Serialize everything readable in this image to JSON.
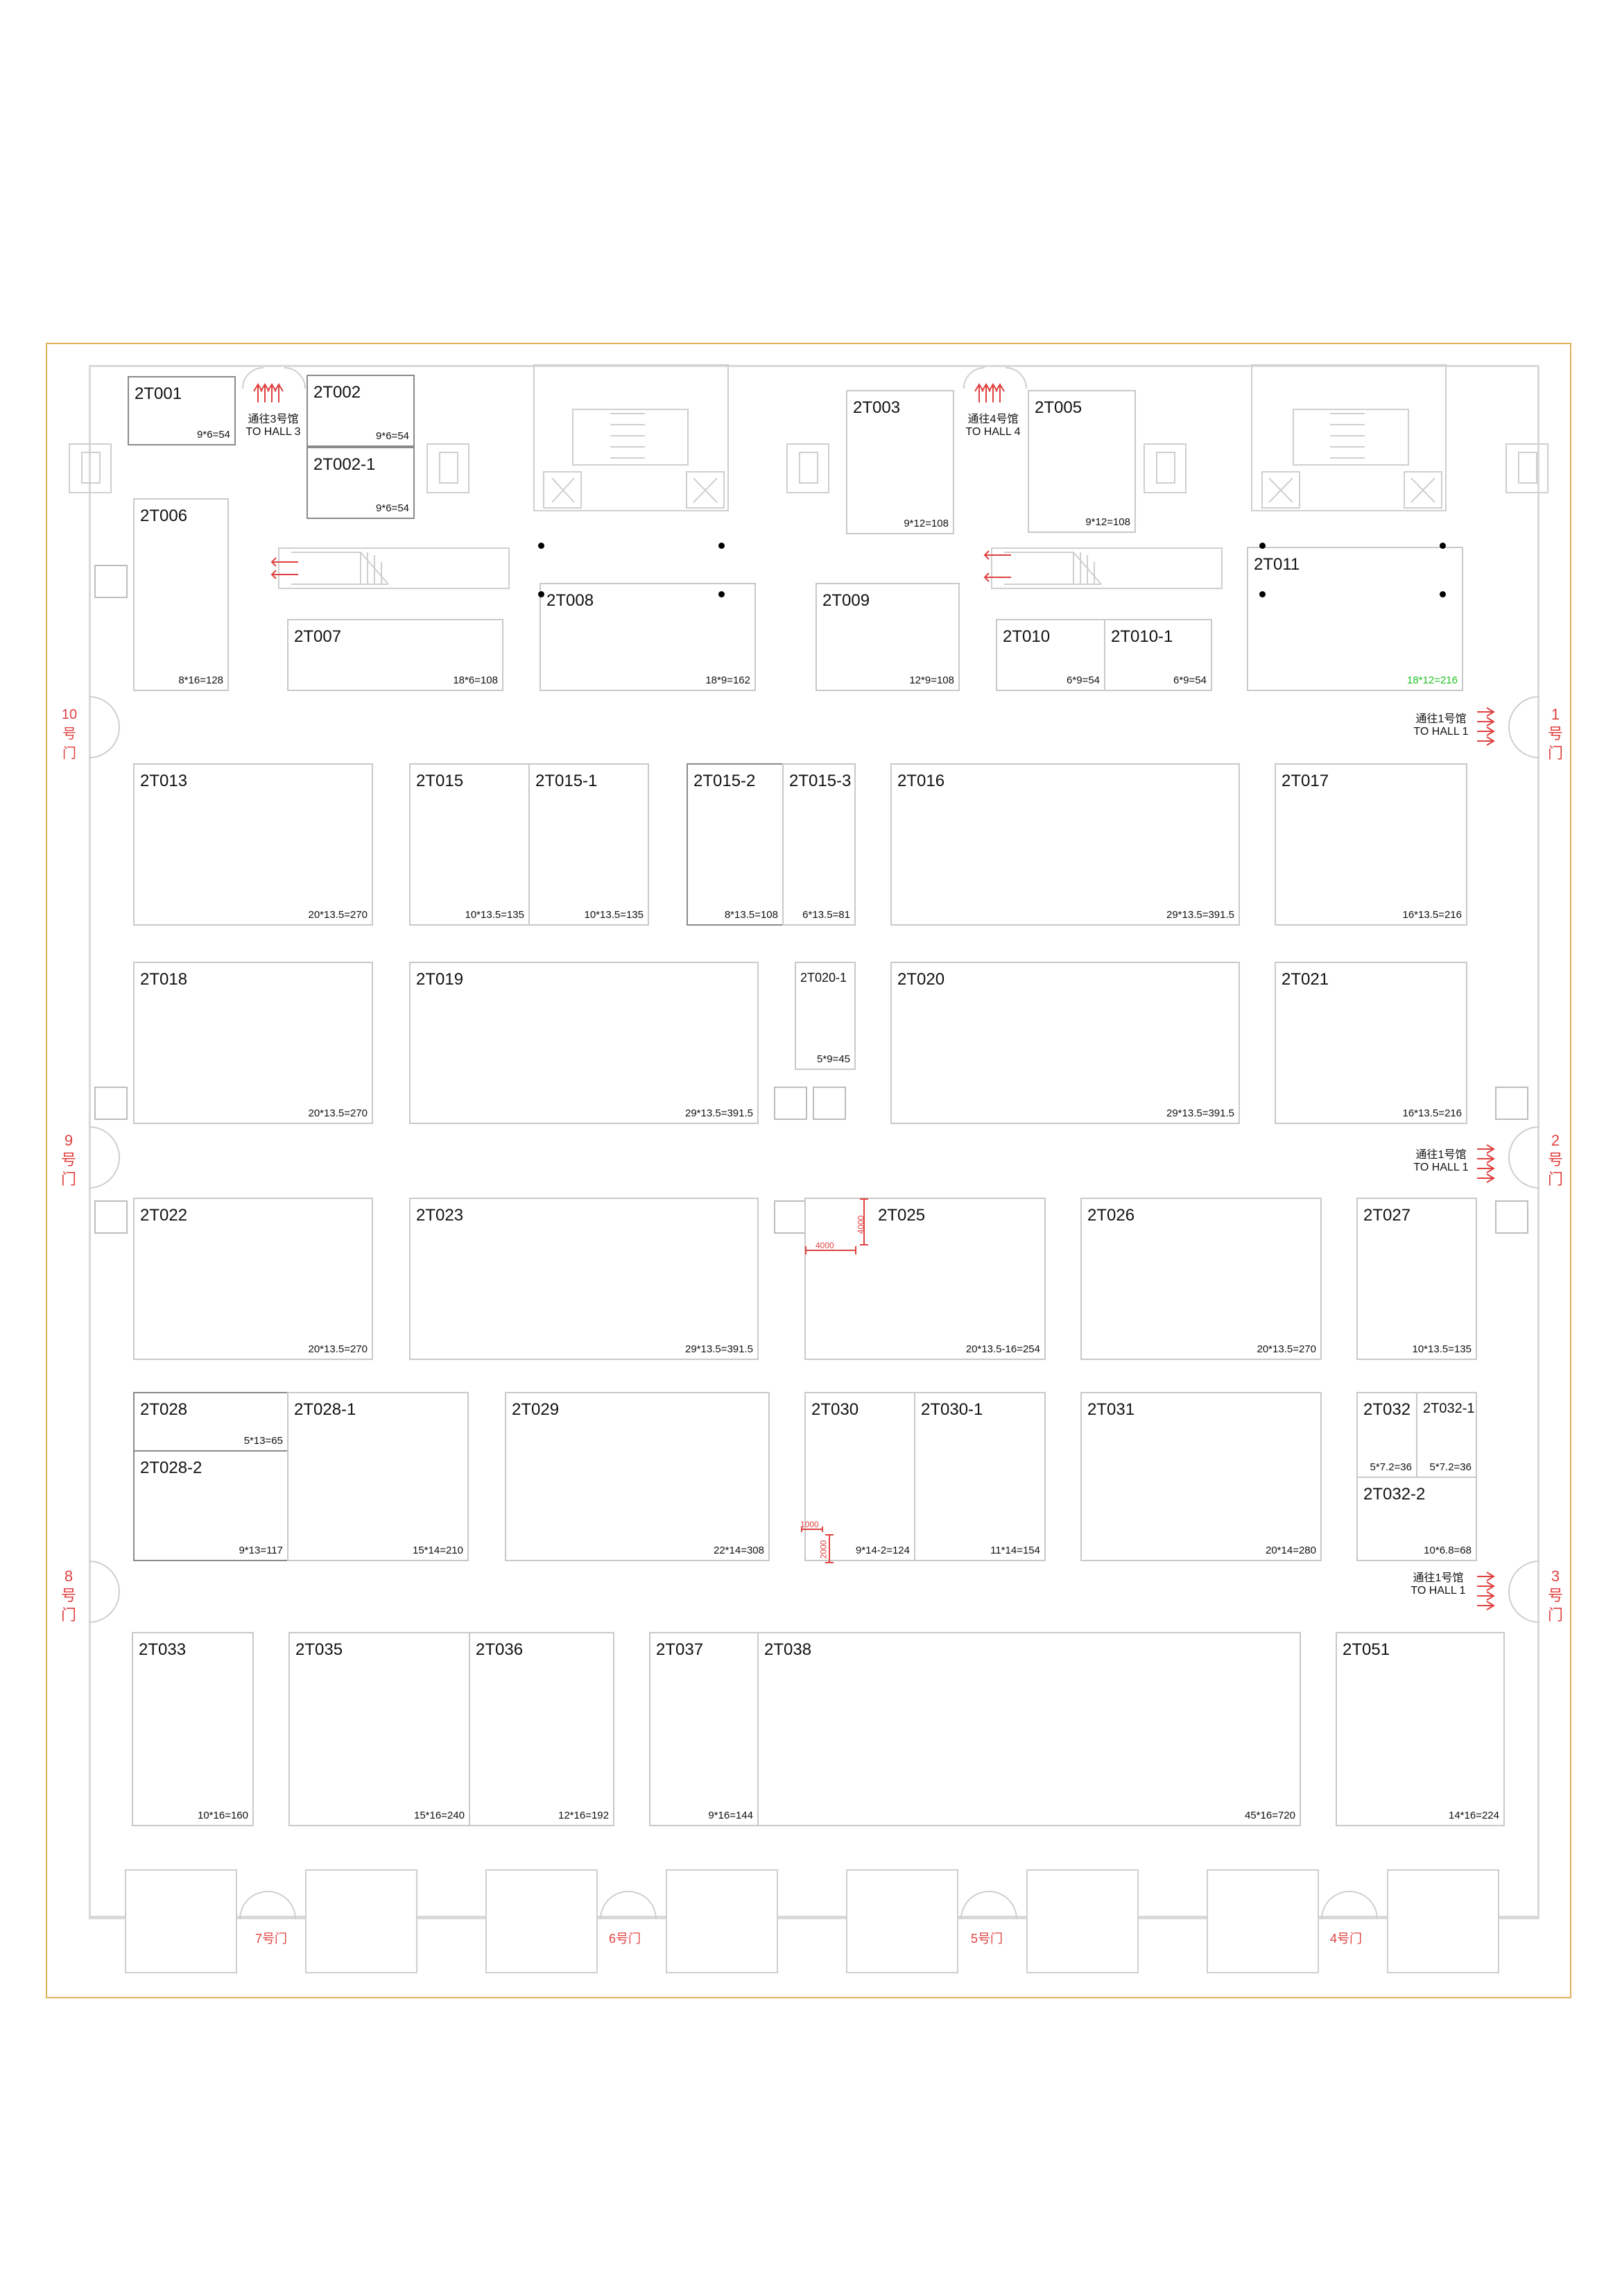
{
  "booths": {
    "t001": {
      "code": "2T001",
      "size": "9*6=54"
    },
    "t002": {
      "code": "2T002",
      "size": "9*6=54"
    },
    "t002_1": {
      "code": "2T002-1",
      "size": "9*6=54"
    },
    "t003": {
      "code": "2T003",
      "size": "9*12=108"
    },
    "t005": {
      "code": "2T005",
      "size": "9*12=108"
    },
    "t006": {
      "code": "2T006",
      "size": "8*16=128"
    },
    "t007": {
      "code": "2T007",
      "size": "18*6=108"
    },
    "t008": {
      "code": "2T008",
      "size": "18*9=162"
    },
    "t009": {
      "code": "2T009",
      "size": "12*9=108"
    },
    "t010": {
      "code": "2T010",
      "size": "6*9=54"
    },
    "t010_1": {
      "code": "2T010-1",
      "size": "6*9=54"
    },
    "t011": {
      "code": "2T011",
      "size": "18*12=216",
      "size_color": "#22c322"
    },
    "t013": {
      "code": "2T013",
      "size": "20*13.5=270"
    },
    "t015": {
      "code": "2T015",
      "size": "10*13.5=135"
    },
    "t015_1": {
      "code": "2T015-1",
      "size": "10*13.5=135"
    },
    "t015_2": {
      "code": "2T015-2",
      "size": "8*13.5=108"
    },
    "t015_3": {
      "code": "2T015-3",
      "size": "6*13.5=81"
    },
    "t016": {
      "code": "2T016",
      "size": "29*13.5=391.5"
    },
    "t017": {
      "code": "2T017",
      "size": "16*13.5=216"
    },
    "t018": {
      "code": "2T018",
      "size": "20*13.5=270"
    },
    "t019": {
      "code": "2T019",
      "size": "29*13.5=391.5"
    },
    "t020_1": {
      "code": "2T020-1",
      "size": "5*9=45"
    },
    "t020": {
      "code": "2T020",
      "size": "29*13.5=391.5"
    },
    "t021": {
      "code": "2T021",
      "size": "16*13.5=216"
    },
    "t022": {
      "code": "2T022",
      "size": "20*13.5=270"
    },
    "t023": {
      "code": "2T023",
      "size": "29*13.5=391.5"
    },
    "t025": {
      "code": "2T025",
      "size": "20*13.5-16=254"
    },
    "t026": {
      "code": "2T026",
      "size": "20*13.5=270"
    },
    "t027": {
      "code": "2T027",
      "size": "10*13.5=135"
    },
    "t028": {
      "code": "2T028",
      "size": "5*13=65"
    },
    "t028_2": {
      "code": "2T028-2",
      "size": "9*13=117"
    },
    "t028_1": {
      "code": "2T028-1",
      "size": "15*14=210"
    },
    "t029": {
      "code": "2T029",
      "size": "22*14=308"
    },
    "t030": {
      "code": "2T030",
      "size": "9*14-2=124"
    },
    "t030_1": {
      "code": "2T030-1",
      "size": "11*14=154"
    },
    "t031": {
      "code": "2T031",
      "size": "20*14=280"
    },
    "t032": {
      "code": "2T032",
      "size": "5*7.2=36"
    },
    "t032_1": {
      "code": "2T032-1",
      "size": "5*7.2=36"
    },
    "t032_2": {
      "code": "2T032-2",
      "size": "10*6.8=68"
    },
    "t033": {
      "code": "2T033",
      "size": "10*16=160"
    },
    "t035": {
      "code": "2T035",
      "size": "15*16=240"
    },
    "t036": {
      "code": "2T036",
      "size": "12*16=192"
    },
    "t037": {
      "code": "2T037",
      "size": "9*16=144"
    },
    "t038": {
      "code": "2T038",
      "size": "45*16=720"
    },
    "t051": {
      "code": "2T051",
      "size": "14*16=224"
    }
  },
  "hall_links": {
    "hall3": {
      "cn": "通往3号馆",
      "en": "TO HALL 3"
    },
    "hall4": {
      "cn": "通往4号馆",
      "en": "TO HALL 4"
    },
    "hall1_a": {
      "cn": "通往1号馆",
      "en": "TO HALL 1"
    },
    "hall1_b": {
      "cn": "通往1号馆",
      "en": "TO HALL 1"
    },
    "hall1_c": {
      "cn": "通往1号馆",
      "en": "TO HALL 1"
    }
  },
  "doors": {
    "d10": "10号门",
    "d9": "9号门",
    "d8": "8号门",
    "d1": "1号门",
    "d2": "2号门",
    "d3": "3号门",
    "d7": "7号门",
    "d6": "6号门",
    "d5": "5号门",
    "d4": "4号门"
  },
  "dimensions": {
    "d4000_h": "4000",
    "d4000_v": "4000",
    "d1000": "1000",
    "d2000": "2000"
  },
  "colors": {
    "frame": "#e0b25a",
    "door_label": "#e04040",
    "booth_border": "#c9c9c9",
    "highlight_size": "#22c322"
  }
}
